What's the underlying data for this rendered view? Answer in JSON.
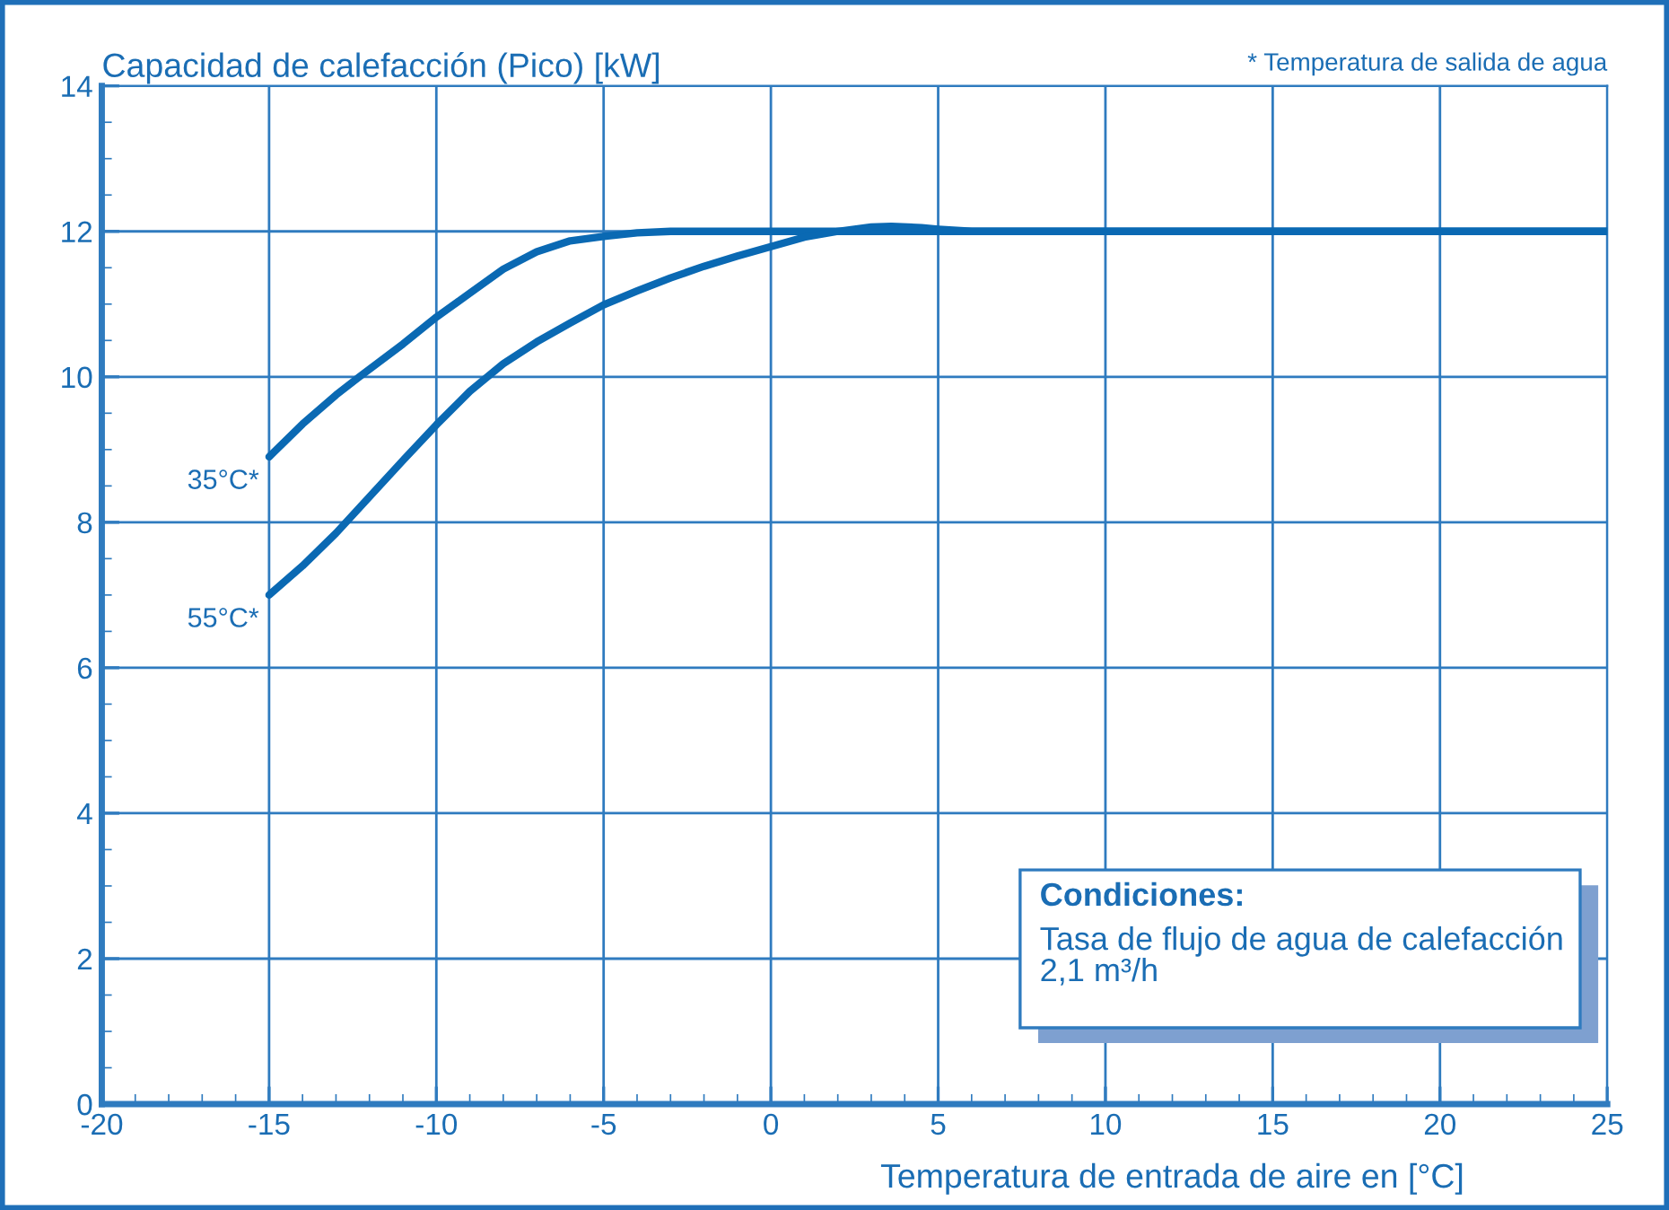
{
  "chart_data": {
    "type": "line",
    "ylabel": "Capacidad de calefacción (Pico) [kW]",
    "xlabel": "Temperatura de entrada de aire en [°C]",
    "annotations": [
      "* Temperatura de salida de agua",
      "Condiciones:\nTasa de flujo de agua de calefacción\n2,1 m³/h"
    ],
    "series": [
      {
        "name": "35°C*",
        "color": "#0a69b3",
        "x": [
          -15,
          -14,
          -13,
          -12.3,
          -11,
          -10,
          -9,
          -8,
          -7,
          -6,
          -5,
          -4,
          -3,
          -2,
          -1,
          0,
          2,
          25
        ],
        "values": [
          8.9,
          9.35,
          9.75,
          10.0,
          10.45,
          10.82,
          11.15,
          11.48,
          11.72,
          11.87,
          11.93,
          11.98,
          12.0,
          12.0,
          12.0,
          12.0,
          12.0,
          12.0
        ]
      },
      {
        "name": "55°C*",
        "color": "#0a69b3",
        "x": [
          -15,
          -14,
          -13,
          -12,
          -11,
          -10,
          -9,
          -8,
          -7,
          -6,
          -5,
          -4,
          -3,
          -2,
          -1,
          0,
          1,
          2,
          3,
          3.6,
          4.5,
          5,
          6,
          25
        ],
        "values": [
          7.0,
          7.4,
          7.85,
          8.35,
          8.85,
          9.34,
          9.8,
          10.18,
          10.48,
          10.74,
          10.99,
          11.18,
          11.36,
          11.52,
          11.66,
          11.79,
          11.92,
          12.0,
          12.06,
          12.07,
          12.05,
          12.03,
          12.0,
          12.0
        ]
      }
    ],
    "xlim": [
      -20,
      25
    ],
    "xticks": [
      -20,
      -15,
      -10,
      -5,
      0,
      5,
      10,
      15,
      20,
      25
    ],
    "ylim": [
      0,
      14
    ],
    "yticks": [
      0,
      2,
      4,
      6,
      8,
      10,
      12,
      14
    ],
    "grid": true,
    "legend": false,
    "marker": "none",
    "line_style": "solid"
  }
}
